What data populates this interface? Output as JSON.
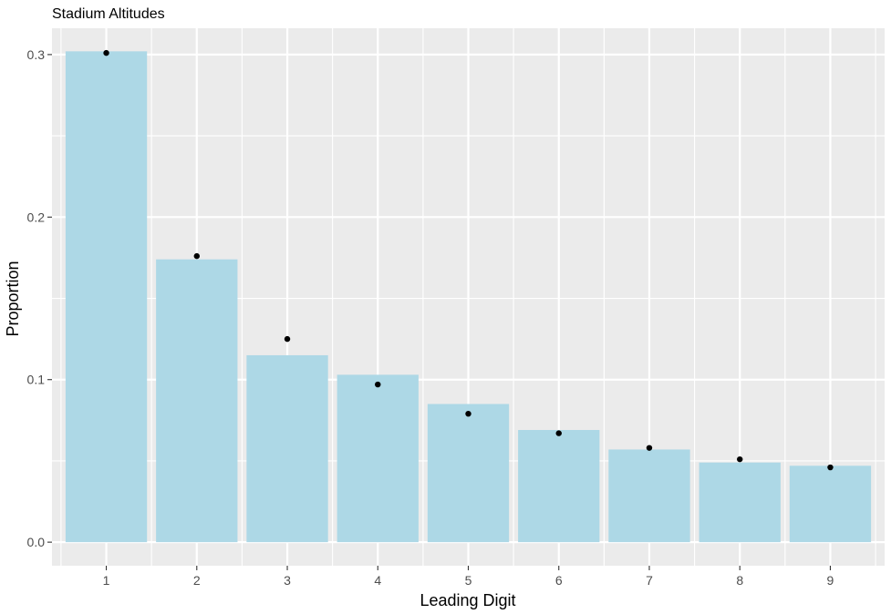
{
  "chart_data": {
    "type": "bar",
    "title": "Stadium Altitudes",
    "xlabel": "Leading Digit",
    "ylabel": "Proportion",
    "categories": [
      "1",
      "2",
      "3",
      "4",
      "5",
      "6",
      "7",
      "8",
      "9"
    ],
    "series": [
      {
        "type": "bar",
        "values": [
          0.302,
          0.174,
          0.115,
          0.103,
          0.085,
          0.069,
          0.057,
          0.049,
          0.047
        ]
      },
      {
        "type": "point",
        "values": [
          0.301,
          0.176,
          0.125,
          0.097,
          0.079,
          0.067,
          0.058,
          0.051,
          0.046
        ]
      }
    ],
    "ylim": [
      -0.0145,
      0.3162
    ],
    "yticks": [
      0.0,
      0.1,
      0.2,
      0.3
    ],
    "ytick_labels": [
      "0.0",
      "0.1",
      "0.2",
      "0.3"
    ],
    "grid": true,
    "legend": "none",
    "colors": {
      "panel": "#ebebeb",
      "grid": "#ffffff",
      "bar_fill": "#add8e6",
      "point": "#000000",
      "tick": "#333333"
    }
  }
}
